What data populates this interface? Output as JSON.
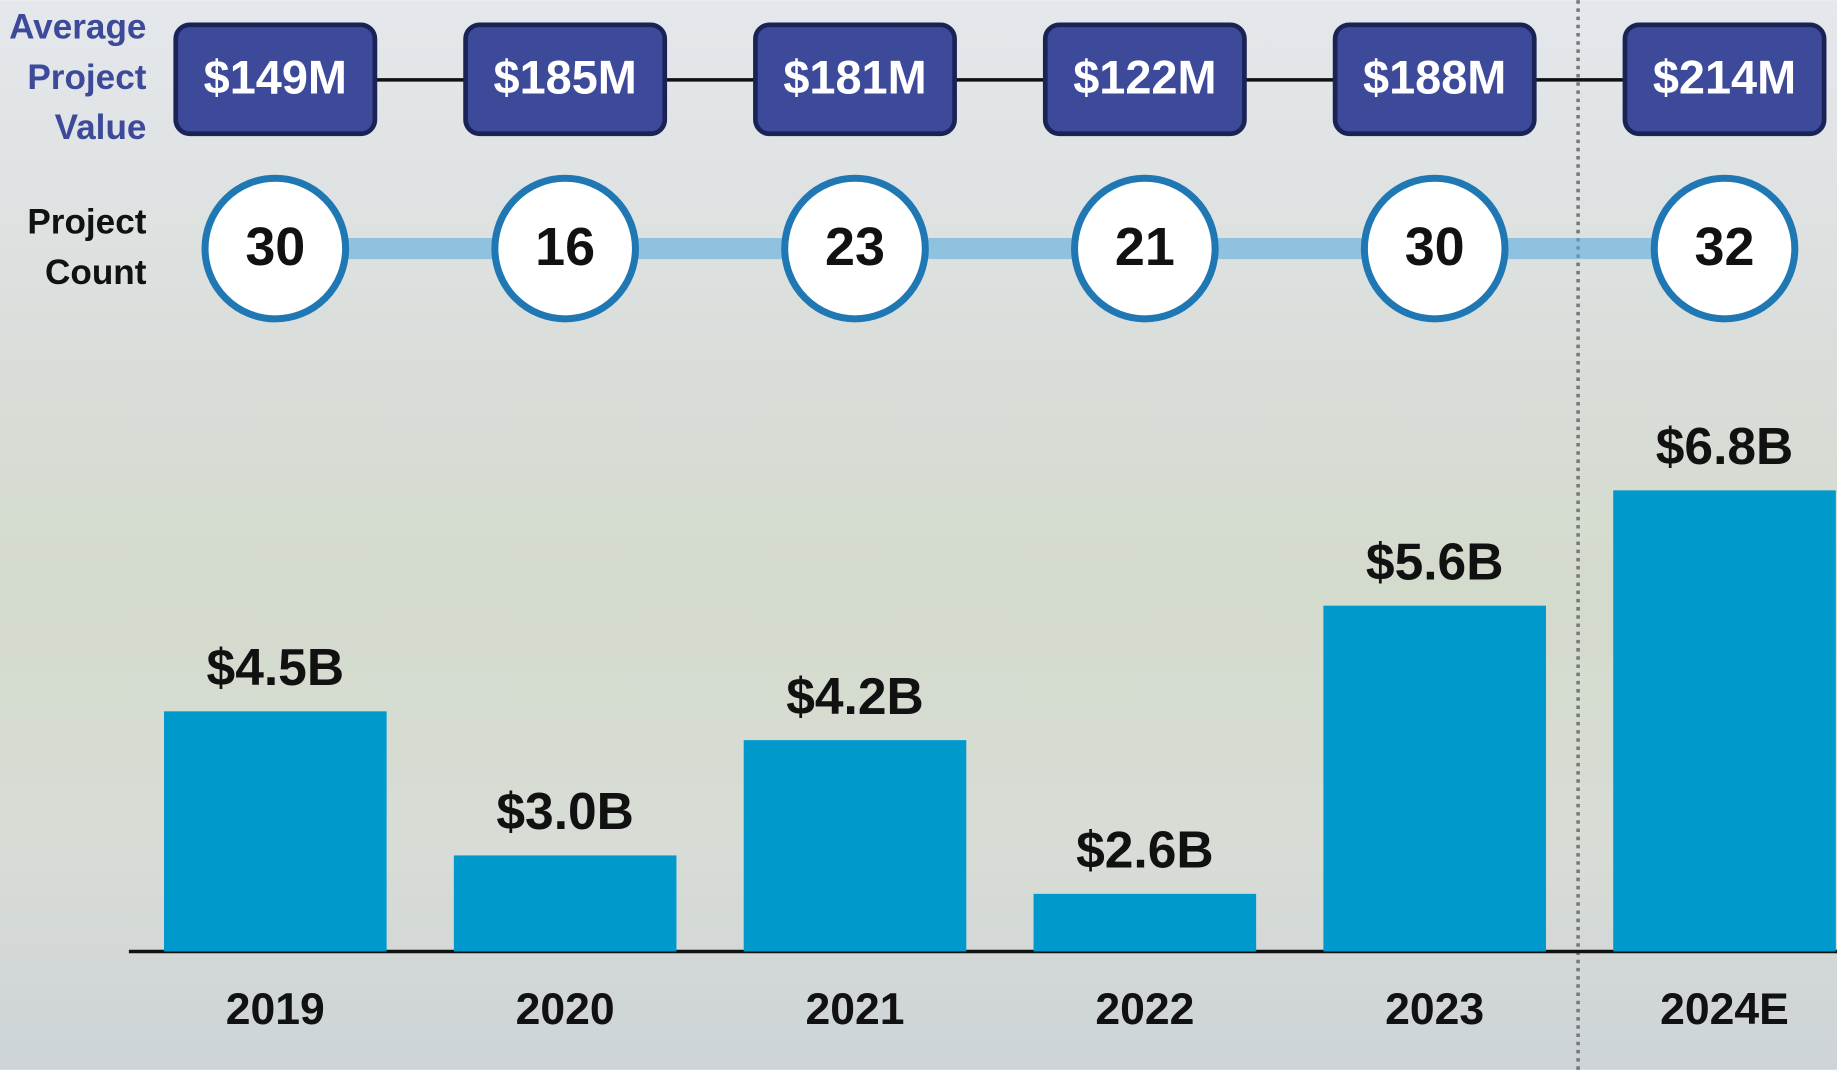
{
  "chart_data": {
    "type": "bar",
    "categories": [
      "2019",
      "2020",
      "2021",
      "2022",
      "2023",
      "2024E"
    ],
    "values": [
      4.5,
      3.0,
      4.2,
      2.6,
      5.6,
      6.8
    ],
    "value_labels": [
      "$4.5B",
      "$3.0B",
      "$4.2B",
      "$2.6B",
      "$5.6B",
      "$6.8B"
    ],
    "color": "#0099cc",
    "ylim": [
      2,
      7
    ],
    "average_project_value": {
      "label": "Average Project Value",
      "values": [
        149,
        185,
        181,
        122,
        188,
        214
      ],
      "value_labels": [
        "$149M",
        "$185M",
        "$181M",
        "$122M",
        "$188M",
        "$214M"
      ],
      "color": "#3d4a9a"
    },
    "project_count": {
      "label": "Project Count",
      "values": [
        30,
        16,
        23,
        21,
        30,
        32
      ],
      "color": "#1f78b4"
    }
  }
}
